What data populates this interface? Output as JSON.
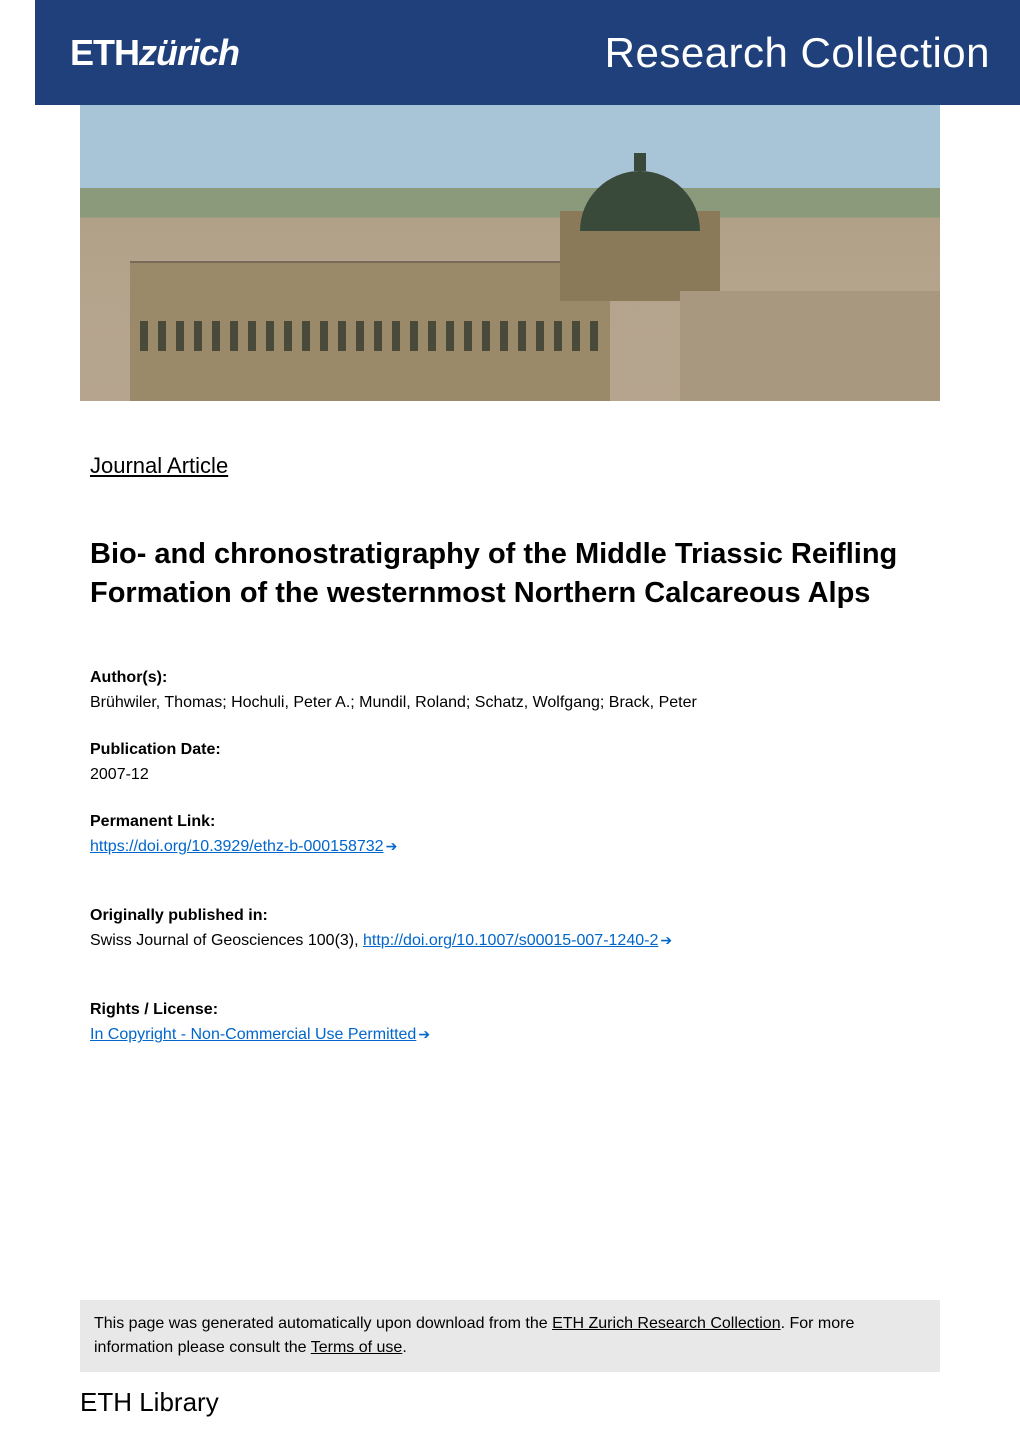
{
  "header": {
    "logo_text_bold": "ETH",
    "logo_text_light": "zürich",
    "collection_title": "Research Collection"
  },
  "hero": {
    "background_sky": "#a8c5d8",
    "background_hills": "#8a9a7a",
    "building_color": "#9a8a6a",
    "dome_color": "#3a4a3a"
  },
  "document": {
    "type": "Journal Article",
    "title": "Bio- and chronostratigraphy of the Middle Triassic Reifling Formation of the westernmost Northern Calcareous Alps"
  },
  "meta": {
    "authors_label": "Author(s):",
    "authors_value": "Brühwiler, Thomas; Hochuli, Peter A.; Mundil, Roland; Schatz, Wolfgang; Brack, Peter",
    "pubdate_label": "Publication Date:",
    "pubdate_value": "2007-12",
    "permalink_label": "Permanent Link:",
    "permalink_url": "https://doi.org/10.3929/ethz-b-000158732",
    "origpub_label": "Originally published in:",
    "origpub_prefix": "Swiss Journal of Geosciences 100(3), ",
    "origpub_url": "http://doi.org/10.1007/s00015-007-1240-2",
    "rights_label": "Rights / License:",
    "rights_value": "In Copyright - Non-Commercial Use Permitted"
  },
  "footer": {
    "note_prefix": "This page was generated automatically upon download from the ",
    "note_link1": "ETH Zurich Research Collection",
    "note_mid": ". For more information please consult the ",
    "note_link2": "Terms of use",
    "note_suffix": ".",
    "library_text": "ETH Library"
  },
  "colors": {
    "header_blue": "#1f407a",
    "link_blue": "#0066cc",
    "footer_gray": "#e8e8e8",
    "text_black": "#000000",
    "page_white": "#ffffff"
  },
  "typography": {
    "collection_title_size": 42,
    "doc_type_size": 22,
    "title_size": 29,
    "meta_size": 16,
    "library_size": 26
  }
}
